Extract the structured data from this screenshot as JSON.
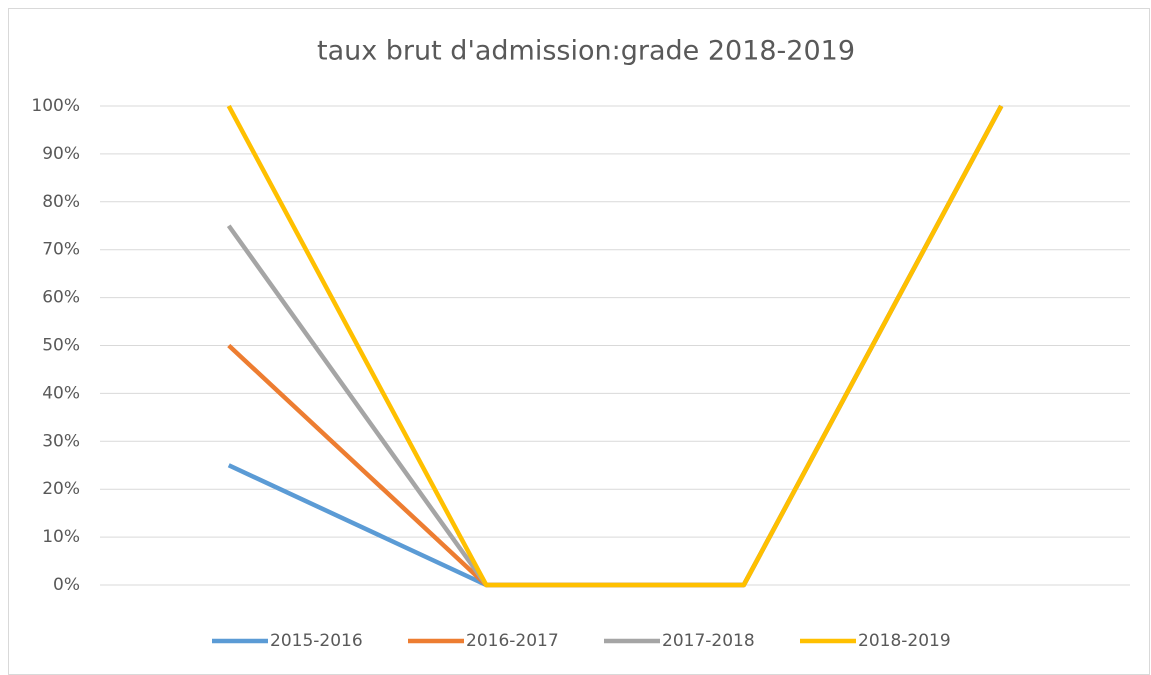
{
  "chart_data": {
    "type": "line",
    "title": "taux brut d'admission:grade 2018-2019",
    "categories": [
      null,
      null,
      null,
      null
    ],
    "series": [
      {
        "name": "2015-2016",
        "color": "#5b9bd5",
        "values": [
          25,
          0,
          0,
          100
        ]
      },
      {
        "name": "2016-2017",
        "color": "#ed7d31",
        "values": [
          50,
          0,
          0,
          100
        ]
      },
      {
        "name": "2017-2018",
        "color": "#a5a5a5",
        "values": [
          75,
          0,
          0,
          100
        ]
      },
      {
        "name": "2018-2019",
        "color": "#ffc000",
        "values": [
          100,
          0,
          0,
          100
        ]
      }
    ],
    "ylim": [
      0,
      100
    ],
    "yticks": [
      {
        "value": 0,
        "label": "0%"
      },
      {
        "value": 10,
        "label": "10%"
      },
      {
        "value": 20,
        "label": "20%"
      },
      {
        "value": 30,
        "label": "30%"
      },
      {
        "value": 40,
        "label": "40%"
      },
      {
        "value": 50,
        "label": "50%"
      },
      {
        "value": 60,
        "label": "60%"
      },
      {
        "value": 70,
        "label": "70%"
      },
      {
        "value": 80,
        "label": "80%"
      },
      {
        "value": 90,
        "label": "90%"
      },
      {
        "value": 100,
        "label": "100%"
      }
    ],
    "grid": true,
    "legend": "bottom"
  }
}
